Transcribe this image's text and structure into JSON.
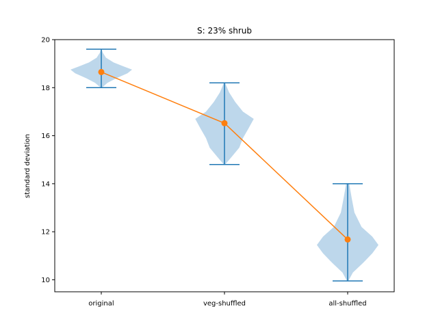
{
  "chart_data": {
    "type": "violin",
    "title": "S: 23% shrub",
    "xlabel": "",
    "ylabel": "standard deviation",
    "categories": [
      "original",
      "veg-shuffled",
      "all-shuffled"
    ],
    "ylim": [
      9.5,
      20
    ],
    "yticks": [
      10,
      12,
      14,
      16,
      18,
      20
    ],
    "grid": false,
    "violins": [
      {
        "category": "original",
        "min": 18.0,
        "max": 19.6,
        "density": [
          [
            18.0,
            0.02
          ],
          [
            18.2,
            0.2
          ],
          [
            18.4,
            0.5
          ],
          [
            18.6,
            0.85
          ],
          [
            18.75,
            1.0
          ],
          [
            18.9,
            0.7
          ],
          [
            19.05,
            0.4
          ],
          [
            19.25,
            0.15
          ],
          [
            19.45,
            0.05
          ],
          [
            19.6,
            0.01
          ]
        ]
      },
      {
        "category": "veg-shuffled",
        "min": 14.8,
        "max": 18.2,
        "density": [
          [
            14.8,
            0.02
          ],
          [
            15.1,
            0.22
          ],
          [
            15.5,
            0.48
          ],
          [
            15.9,
            0.6
          ],
          [
            16.3,
            0.78
          ],
          [
            16.7,
            0.95
          ],
          [
            17.0,
            0.6
          ],
          [
            17.4,
            0.35
          ],
          [
            17.8,
            0.15
          ],
          [
            18.2,
            0.02
          ]
        ]
      },
      {
        "category": "all-shuffled",
        "min": 9.95,
        "max": 14.0,
        "density": [
          [
            9.95,
            0.02
          ],
          [
            10.3,
            0.17
          ],
          [
            10.7,
            0.5
          ],
          [
            11.1,
            0.8
          ],
          [
            11.45,
            1.0
          ],
          [
            11.8,
            0.8
          ],
          [
            12.2,
            0.45
          ],
          [
            12.8,
            0.22
          ],
          [
            13.4,
            0.13
          ],
          [
            14.0,
            0.05
          ]
        ]
      }
    ],
    "series": [
      {
        "values": [
          18.65,
          16.52,
          11.68
        ]
      }
    ],
    "colors": {
      "violin_fill": "#b9d5ea",
      "violin_line": "#1f77b4",
      "series_line": "#ff7f0e"
    }
  }
}
